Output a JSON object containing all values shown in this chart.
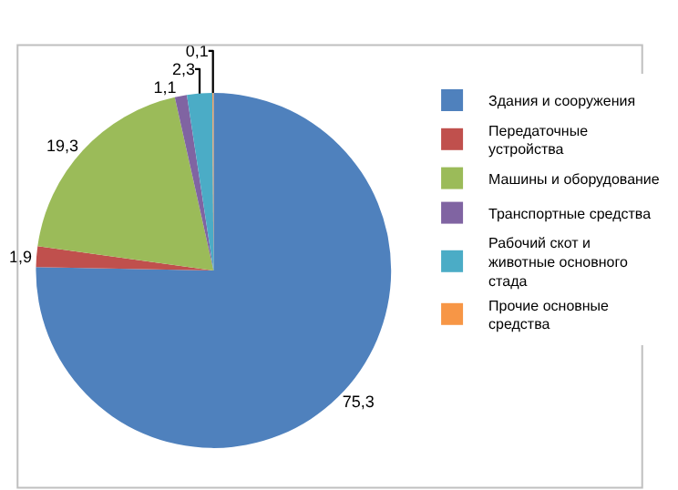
{
  "chart_data": {
    "type": "pie",
    "categories": [
      "Здания и сооружения",
      "Передаточные устройства",
      "Машины и оборудование",
      "Транспортные средства",
      "Рабочий скот и животные основного стада",
      "Прочие основные средства"
    ],
    "values": [
      75.3,
      1.9,
      19.3,
      1.1,
      2.3,
      0.1
    ],
    "value_labels": [
      "75,3",
      "1,9",
      "19,3",
      "1,1",
      "2,3",
      "0,1"
    ],
    "colors": [
      "#4f81bd",
      "#c0504d",
      "#9bbb59",
      "#8064a2",
      "#4bacc6",
      "#f79646"
    ],
    "legend": "right"
  }
}
